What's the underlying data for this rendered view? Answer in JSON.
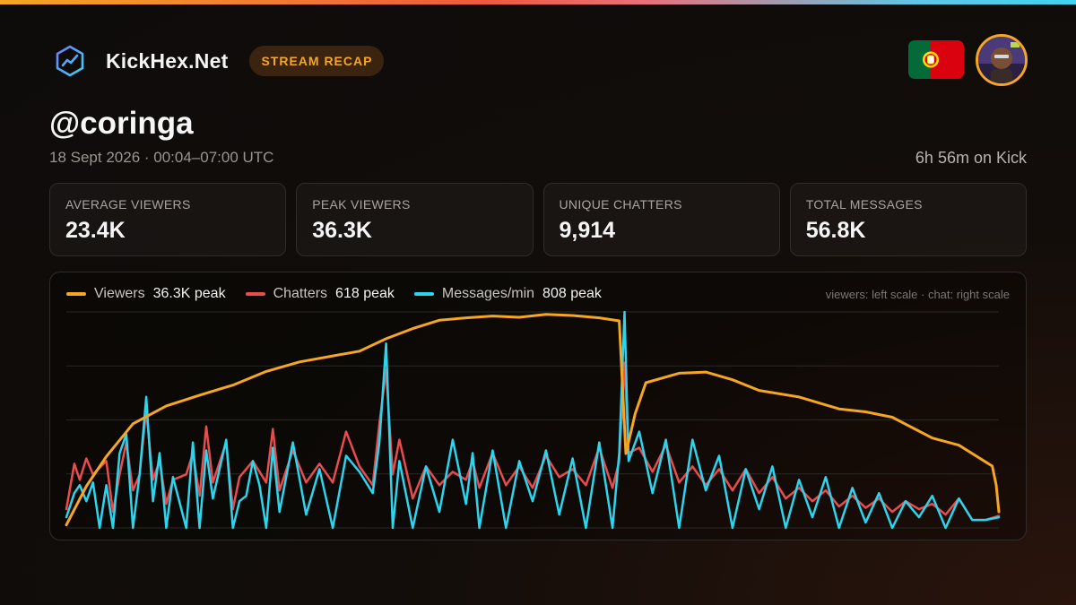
{
  "brand": {
    "name": "KickHex.Net",
    "badge": "STREAM RECAP",
    "logo_icon": "hex-chart-icon",
    "accent_color": "#f5a623"
  },
  "country_flag": "portugal-flag-icon",
  "avatar": "streamer-avatar",
  "streamer": {
    "handle": "@coringa",
    "date_line": "18 Sept 2026 · 00:04–07:00 UTC",
    "duration": "6h 56m on Kick"
  },
  "stats": [
    {
      "label": "AVERAGE VIEWERS",
      "value": "23.4K"
    },
    {
      "label": "PEAK VIEWERS",
      "value": "36.3K"
    },
    {
      "label": "UNIQUE CHATTERS",
      "value": "9,914"
    },
    {
      "label": "TOTAL  MESSAGES",
      "value": "56.8K"
    }
  ],
  "chart_data": {
    "type": "line",
    "scale_note": "viewers: left scale · chat: right scale",
    "grid": true,
    "legend_position": "top-left",
    "viewers_ylim": [
      0,
      36300
    ],
    "chat_ylim": [
      0,
      808
    ],
    "series": [
      {
        "name": "Viewers",
        "peak_label": "36.3K peak",
        "color": "#f5a623",
        "axis": "left",
        "points": [
          [
            0,
            500
          ],
          [
            0.15,
            7000
          ],
          [
            0.3,
            12000
          ],
          [
            0.5,
            17500
          ],
          [
            0.75,
            20500
          ],
          [
            1,
            22300
          ],
          [
            1.25,
            24000
          ],
          [
            1.5,
            26300
          ],
          [
            1.75,
            27900
          ],
          [
            2,
            28900
          ],
          [
            2.2,
            29700
          ],
          [
            2.4,
            31800
          ],
          [
            2.6,
            33500
          ],
          [
            2.8,
            34900
          ],
          [
            3,
            35300
          ],
          [
            3.2,
            35600
          ],
          [
            3.4,
            35400
          ],
          [
            3.6,
            35900
          ],
          [
            3.8,
            35700
          ],
          [
            4,
            35300
          ],
          [
            4.15,
            34800
          ],
          [
            4.2,
            12500
          ],
          [
            4.27,
            19200
          ],
          [
            4.35,
            24400
          ],
          [
            4.6,
            26000
          ],
          [
            4.8,
            26200
          ],
          [
            5,
            24900
          ],
          [
            5.2,
            23100
          ],
          [
            5.5,
            22000
          ],
          [
            5.8,
            20000
          ],
          [
            6,
            19500
          ],
          [
            6.2,
            18600
          ],
          [
            6.5,
            15100
          ],
          [
            6.7,
            13900
          ],
          [
            6.9,
            11100
          ],
          [
            6.95,
            10400
          ],
          [
            6.98,
            7200
          ],
          [
            7.0,
            2700
          ]
        ]
      },
      {
        "name": "Chatters",
        "peak_label": "618 peak",
        "color": "#e84c4c",
        "axis": "right",
        "points": [
          [
            0,
            70
          ],
          [
            0.06,
            240
          ],
          [
            0.1,
            180
          ],
          [
            0.15,
            260
          ],
          [
            0.2,
            200
          ],
          [
            0.3,
            250
          ],
          [
            0.35,
            60
          ],
          [
            0.4,
            200
          ],
          [
            0.45,
            320
          ],
          [
            0.5,
            140
          ],
          [
            0.55,
            200
          ],
          [
            0.6,
            440
          ],
          [
            0.65,
            180
          ],
          [
            0.7,
            250
          ],
          [
            0.75,
            90
          ],
          [
            0.8,
            180
          ],
          [
            0.9,
            200
          ],
          [
            0.95,
            280
          ],
          [
            1.0,
            120
          ],
          [
            1.05,
            380
          ],
          [
            1.1,
            170
          ],
          [
            1.2,
            320
          ],
          [
            1.25,
            70
          ],
          [
            1.3,
            190
          ],
          [
            1.4,
            250
          ],
          [
            1.5,
            170
          ],
          [
            1.55,
            370
          ],
          [
            1.6,
            140
          ],
          [
            1.7,
            290
          ],
          [
            1.8,
            170
          ],
          [
            1.9,
            240
          ],
          [
            2.0,
            170
          ],
          [
            2.1,
            360
          ],
          [
            2.2,
            230
          ],
          [
            2.3,
            160
          ],
          [
            2.35,
            390
          ],
          [
            2.4,
            590
          ],
          [
            2.45,
            200
          ],
          [
            2.5,
            330
          ],
          [
            2.6,
            110
          ],
          [
            2.7,
            230
          ],
          [
            2.8,
            160
          ],
          [
            2.9,
            210
          ],
          [
            3.0,
            180
          ],
          [
            3.05,
            250
          ],
          [
            3.1,
            150
          ],
          [
            3.2,
            280
          ],
          [
            3.3,
            160
          ],
          [
            3.4,
            230
          ],
          [
            3.5,
            150
          ],
          [
            3.6,
            270
          ],
          [
            3.7,
            190
          ],
          [
            3.8,
            220
          ],
          [
            3.9,
            160
          ],
          [
            4.0,
            300
          ],
          [
            4.1,
            150
          ],
          [
            4.15,
            250
          ],
          [
            4.19,
            618
          ],
          [
            4.22,
            280
          ],
          [
            4.3,
            300
          ],
          [
            4.4,
            210
          ],
          [
            4.5,
            310
          ],
          [
            4.6,
            170
          ],
          [
            4.7,
            230
          ],
          [
            4.8,
            160
          ],
          [
            4.9,
            220
          ],
          [
            5.0,
            140
          ],
          [
            5.1,
            220
          ],
          [
            5.2,
            130
          ],
          [
            5.3,
            190
          ],
          [
            5.4,
            110
          ],
          [
            5.5,
            150
          ],
          [
            5.6,
            100
          ],
          [
            5.7,
            140
          ],
          [
            5.8,
            80
          ],
          [
            5.9,
            120
          ],
          [
            6.0,
            75
          ],
          [
            6.1,
            110
          ],
          [
            6.2,
            60
          ],
          [
            6.3,
            100
          ],
          [
            6.4,
            70
          ],
          [
            6.5,
            90
          ],
          [
            6.6,
            50
          ],
          [
            6.7,
            110
          ],
          [
            6.8,
            30
          ],
          [
            6.9,
            30
          ],
          [
            7.0,
            45
          ]
        ]
      },
      {
        "name": "Messages/min",
        "peak_label": "808 peak",
        "color": "#2dd4ee",
        "axis": "right",
        "points": [
          [
            0,
            40
          ],
          [
            0.06,
            130
          ],
          [
            0.1,
            160
          ],
          [
            0.15,
            100
          ],
          [
            0.2,
            170
          ],
          [
            0.25,
            0
          ],
          [
            0.3,
            160
          ],
          [
            0.35,
            0
          ],
          [
            0.4,
            280
          ],
          [
            0.45,
            350
          ],
          [
            0.5,
            0
          ],
          [
            0.55,
            200
          ],
          [
            0.6,
            490
          ],
          [
            0.65,
            100
          ],
          [
            0.7,
            280
          ],
          [
            0.75,
            0
          ],
          [
            0.8,
            190
          ],
          [
            0.9,
            0
          ],
          [
            0.95,
            320
          ],
          [
            1.0,
            0
          ],
          [
            1.05,
            290
          ],
          [
            1.1,
            110
          ],
          [
            1.2,
            330
          ],
          [
            1.25,
            0
          ],
          [
            1.3,
            100
          ],
          [
            1.35,
            120
          ],
          [
            1.4,
            250
          ],
          [
            1.45,
            160
          ],
          [
            1.5,
            0
          ],
          [
            1.55,
            300
          ],
          [
            1.6,
            60
          ],
          [
            1.7,
            320
          ],
          [
            1.8,
            50
          ],
          [
            1.9,
            220
          ],
          [
            2.0,
            0
          ],
          [
            2.1,
            270
          ],
          [
            2.2,
            210
          ],
          [
            2.3,
            130
          ],
          [
            2.35,
            320
          ],
          [
            2.4,
            690
          ],
          [
            2.45,
            0
          ],
          [
            2.5,
            250
          ],
          [
            2.6,
            0
          ],
          [
            2.7,
            230
          ],
          [
            2.8,
            60
          ],
          [
            2.9,
            330
          ],
          [
            3.0,
            90
          ],
          [
            3.05,
            280
          ],
          [
            3.1,
            0
          ],
          [
            3.2,
            290
          ],
          [
            3.3,
            0
          ],
          [
            3.4,
            250
          ],
          [
            3.5,
            100
          ],
          [
            3.6,
            290
          ],
          [
            3.7,
            50
          ],
          [
            3.8,
            260
          ],
          [
            3.9,
            0
          ],
          [
            4.0,
            320
          ],
          [
            4.1,
            0
          ],
          [
            4.15,
            280
          ],
          [
            4.19,
            808
          ],
          [
            4.22,
            250
          ],
          [
            4.3,
            360
          ],
          [
            4.4,
            130
          ],
          [
            4.5,
            330
          ],
          [
            4.6,
            0
          ],
          [
            4.7,
            330
          ],
          [
            4.8,
            140
          ],
          [
            4.9,
            270
          ],
          [
            5.0,
            0
          ],
          [
            5.1,
            220
          ],
          [
            5.2,
            70
          ],
          [
            5.3,
            230
          ],
          [
            5.4,
            0
          ],
          [
            5.5,
            180
          ],
          [
            5.6,
            40
          ],
          [
            5.7,
            190
          ],
          [
            5.8,
            0
          ],
          [
            5.9,
            150
          ],
          [
            6.0,
            20
          ],
          [
            6.1,
            130
          ],
          [
            6.2,
            0
          ],
          [
            6.3,
            100
          ],
          [
            6.4,
            40
          ],
          [
            6.5,
            120
          ],
          [
            6.6,
            0
          ],
          [
            6.7,
            110
          ],
          [
            6.8,
            30
          ],
          [
            6.9,
            30
          ],
          [
            7.0,
            40
          ]
        ]
      }
    ]
  }
}
